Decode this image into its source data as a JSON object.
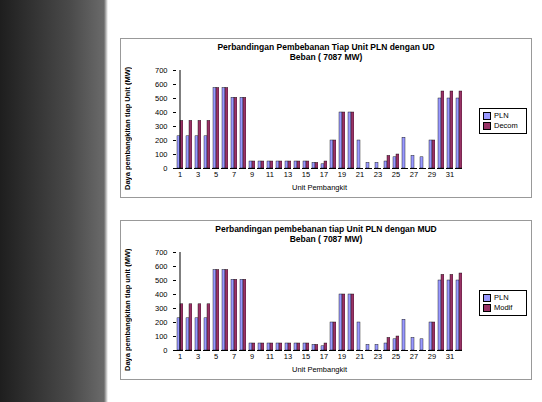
{
  "chart_data": [
    {
      "type": "bar",
      "title": "Perbandingan Pembebanan Tiap Unit PLN dengan UD",
      "subtitle": "Beban ( 7087 MW)",
      "x_label": "Unit Pembangkit",
      "y_label": "Daya pembangkitan tiap Unit (MW)",
      "categories": [
        "1",
        null,
        "3",
        null,
        "5",
        null,
        "7",
        null,
        "9",
        null,
        "11",
        null,
        "13",
        null,
        "15",
        null,
        "17",
        null,
        "19",
        null,
        "21",
        null,
        "23",
        null,
        "25",
        null,
        "27",
        null,
        "29",
        null,
        "31",
        null
      ],
      "series": [
        {
          "name": "PLN",
          "color": "#9999ff",
          "values": [
            230,
            230,
            230,
            230,
            575,
            575,
            505,
            505,
            50,
            50,
            50,
            50,
            50,
            50,
            50,
            40,
            30,
            200,
            400,
            400,
            200,
            40,
            40,
            50,
            80,
            220,
            90,
            80,
            200,
            500,
            500,
            500
          ]
        },
        {
          "name": "Decom",
          "color": "#993366",
          "values": [
            340,
            340,
            340,
            340,
            575,
            575,
            505,
            505,
            50,
            50,
            50,
            50,
            50,
            50,
            50,
            40,
            50,
            200,
            400,
            400,
            0,
            0,
            0,
            90,
            100,
            0,
            0,
            0,
            200,
            550,
            550,
            550
          ]
        }
      ],
      "ylim": [
        0,
        700
      ],
      "yticks": [
        0,
        100,
        200,
        300,
        400,
        500,
        600,
        700
      ],
      "legend": "right"
    },
    {
      "type": "bar",
      "title": "Perbandingan pembebanan tiap Unit PLN dengan MUD",
      "subtitle": "Beban ( 7087 MW)",
      "x_label": "Unit Pembangkit",
      "y_label": "Daya pembangkitan tiap unit (MW)",
      "categories": [
        "1",
        null,
        "3",
        null,
        "5",
        null,
        "7",
        null,
        "9",
        null,
        "11",
        null,
        "13",
        null,
        "15",
        null,
        "17",
        null,
        "19",
        null,
        "21",
        null,
        "23",
        null,
        "25",
        null,
        "27",
        null,
        "29",
        null,
        "31",
        null
      ],
      "series": [
        {
          "name": "PLN",
          "color": "#9999ff",
          "values": [
            230,
            230,
            230,
            230,
            575,
            575,
            505,
            505,
            50,
            50,
            50,
            50,
            50,
            50,
            50,
            40,
            30,
            200,
            400,
            400,
            200,
            40,
            40,
            50,
            80,
            220,
            90,
            80,
            200,
            500,
            500,
            500
          ]
        },
        {
          "name": "Modif",
          "color": "#993366",
          "values": [
            330,
            330,
            330,
            330,
            575,
            575,
            505,
            505,
            50,
            50,
            50,
            50,
            50,
            50,
            50,
            40,
            50,
            200,
            400,
            400,
            0,
            0,
            0,
            90,
            100,
            0,
            0,
            0,
            200,
            540,
            540,
            550
          ]
        }
      ],
      "ylim": [
        0,
        700
      ],
      "yticks": [
        0,
        100,
        200,
        300,
        400,
        500,
        600,
        700
      ],
      "legend": "right"
    }
  ]
}
